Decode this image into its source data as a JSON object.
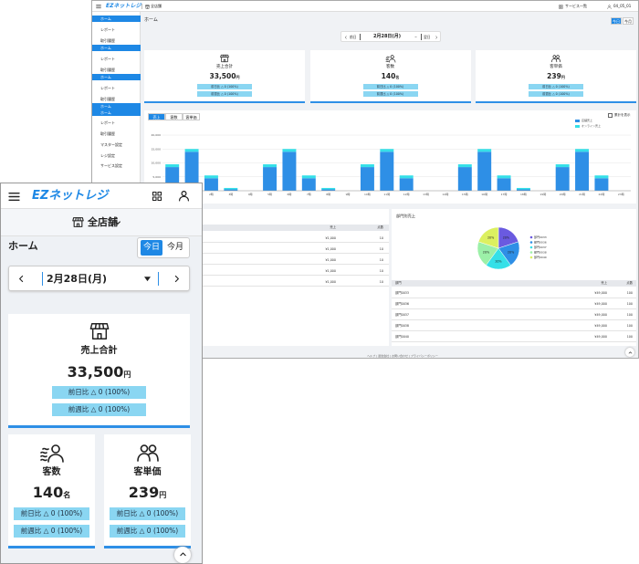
{
  "desktop": {
    "header": {
      "logo": "EZネットレジ",
      "store": "全店舗",
      "services": "サービス一覧",
      "user": "04_05_01"
    },
    "sidebar": [
      "ホーム",
      "レポート",
      "取引履歴",
      "ホーム",
      "レポート",
      "取引履歴",
      "ホーム",
      "レポート",
      "取引履歴",
      "ホーム",
      "ホーム",
      "レポート",
      "取引履歴",
      "マスター設定",
      "レジ設定",
      "サービス設定"
    ],
    "page_title": "ホーム",
    "period": [
      "今日",
      "今月"
    ],
    "date_nav": {
      "prev": "前日",
      "date": "2月28日(月)",
      "next": "翌日"
    },
    "cards": [
      {
        "title": "売上合計",
        "value": "33,500",
        "unit": "円",
        "badges": [
          "前日比 △ 0 (100%)",
          "前週比 △ 0 (100%)"
        ]
      },
      {
        "title": "客数",
        "value": "140",
        "unit": "名",
        "badges": [
          "前日比 △ 0 (100%)",
          "前週比 △ 0 (100%)"
        ]
      },
      {
        "title": "客単価",
        "value": "239",
        "unit": "円",
        "badges": [
          "前日比 △ 0 (100%)",
          "前週比 △ 0 (100%)"
        ]
      }
    ],
    "tabs": [
      "売上",
      "客数",
      "客単価"
    ],
    "cumulative": "累計を表示",
    "product_table": {
      "columns": [
        "売上",
        "点数"
      ],
      "rows": [
        [
          "¥1,000",
          "10"
        ],
        [
          "¥1,000",
          "10"
        ],
        [
          "¥1,000",
          "10"
        ],
        [
          "¥1,000",
          "10"
        ],
        [
          "¥1,000",
          "10"
        ]
      ]
    },
    "dept_title": "部門別売上",
    "dept_table": {
      "columns": [
        "部門",
        "売上",
        "点数"
      ],
      "rows": [
        [
          "部門0033",
          "¥49,000",
          "100"
        ],
        [
          "部門0036",
          "¥49,000",
          "100"
        ],
        [
          "部門0037",
          "¥49,000",
          "100"
        ],
        [
          "部門0038",
          "¥49,000",
          "100"
        ],
        [
          "部門0040",
          "¥49,000",
          "100"
        ]
      ]
    },
    "footer": "ヘルプ | 運営会社 | お問い合わせ | プライバシーポリシー"
  },
  "mobile": {
    "logo": "EZネットレジ",
    "store": "全店舗",
    "page_title": "ホーム",
    "period": [
      "今日",
      "今月"
    ],
    "date": "2月28日(月)",
    "cards": [
      {
        "title": "売上合計",
        "value": "33,500",
        "unit": "円",
        "badges": [
          "前日比 △ 0 (100%)",
          "前週比 △ 0 (100%)"
        ]
      },
      {
        "title": "客数",
        "value": "140",
        "unit": "名",
        "badges": [
          "前日比 △ 0 (100%)",
          "前週比 △ 0 (100%)"
        ]
      },
      {
        "title": "客単価",
        "value": "239",
        "unit": "円",
        "badges": [
          "前日比 △ 0 (100%)",
          "前週比 △ 0 (100%)"
        ]
      }
    ]
  },
  "chart_data": [
    {
      "type": "bar",
      "stacked": true,
      "grid": true,
      "categories": [
        "0時",
        "1時",
        "2時",
        "3時",
        "4時",
        "5時",
        "6時",
        "7時",
        "8時",
        "9時",
        "10時",
        "11時",
        "12時",
        "13時",
        "14時",
        "15時",
        "16時",
        "17時",
        "18時",
        "19時",
        "20時",
        "21時",
        "22時",
        "23時"
      ],
      "series": [
        {
          "name": "店舗売上",
          "color": "#2e8fe6",
          "values": [
            8500,
            14000,
            4500,
            500,
            0,
            8500,
            14000,
            4500,
            500,
            0,
            8500,
            14000,
            4500,
            0,
            0,
            8500,
            14000,
            4500,
            500,
            0,
            8500,
            14000,
            4500,
            0
          ]
        },
        {
          "name": "オンライン売上",
          "color": "#35e0e8",
          "values": [
            1000,
            1000,
            1000,
            500,
            0,
            1000,
            1000,
            1000,
            500,
            0,
            1000,
            1000,
            1000,
            0,
            0,
            1000,
            1000,
            1000,
            500,
            0,
            1000,
            1000,
            1000,
            0
          ]
        }
      ],
      "ylim": [
        0,
        20000
      ],
      "yticks": [
        0,
        {
          "value": 5000,
          "label": "5,000"
        },
        {
          "value": 10000,
          "label": "10,000"
        },
        {
          "value": 15000,
          "label": "15,000"
        },
        {
          "value": 20000,
          "label": "20,000"
        }
      ]
    },
    {
      "type": "pie",
      "categories": [
        "部門0033",
        "部門0036",
        "部門0037",
        "部門0038",
        "部門0040"
      ],
      "values": [
        20,
        20,
        20,
        20,
        20
      ],
      "value_labels": [
        "20%",
        "20%",
        "20%",
        "20%",
        "20%"
      ],
      "colors": [
        "#6a5ae0",
        "#2e8fe6",
        "#35e0e8",
        "#9cf0a8",
        "#dcf060"
      ]
    }
  ]
}
